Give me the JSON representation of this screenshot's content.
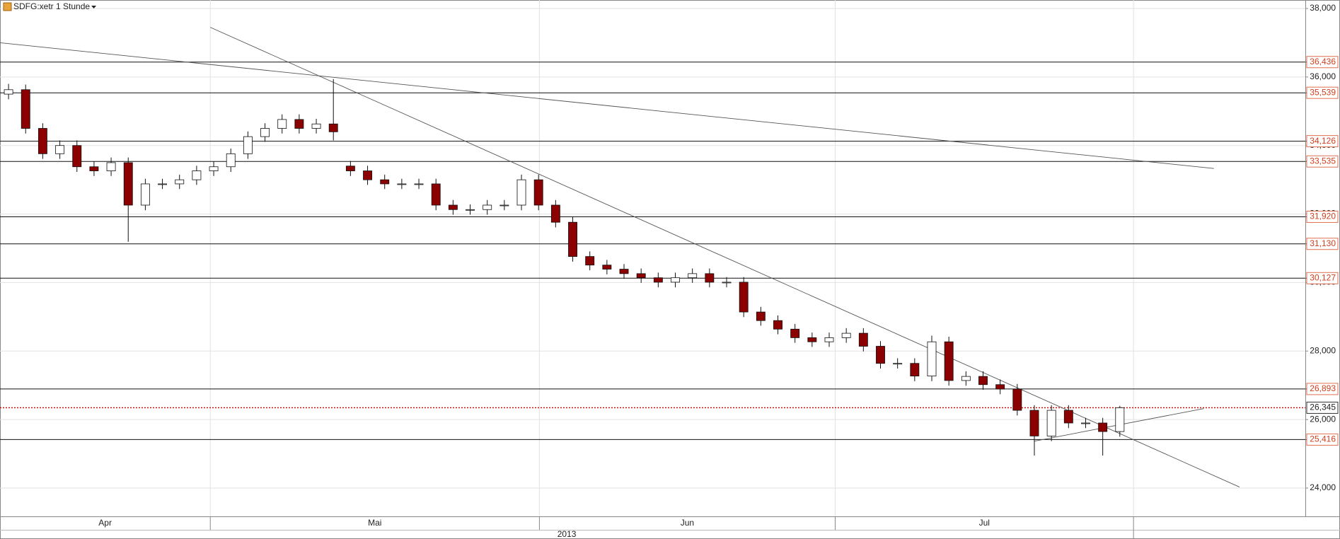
{
  "chart_data": {
    "type": "candlestick",
    "title": "SDFG:xetr 1 Stunde",
    "up_color": "#ffffff",
    "down_color": "#8b0000",
    "open": [
      35500,
      35630,
      34500,
      33760,
      34000,
      33380,
      33260,
      33500,
      32260,
      32880,
      32880,
      33000,
      33260,
      33380,
      33760,
      34260,
      34500,
      34760,
      34500,
      34630,
      33400,
      33260,
      33000,
      32880,
      32880,
      32880,
      32260,
      32130,
      32130,
      32260,
      32260,
      33000,
      32260,
      31760,
      30760,
      30510,
      30390,
      30260,
      30140,
      30010,
      30140,
      30260,
      30010,
      30010,
      29140,
      28890,
      28640,
      28390,
      28270,
      28390,
      28520,
      28140,
      27640,
      27640,
      27270,
      28270,
      27140,
      27260,
      27020,
      26890,
      26270,
      25520,
      26270,
      25900,
      25900,
      25650
    ],
    "high": [
      35800,
      35780,
      34650,
      34150,
      34150,
      33530,
      33650,
      33650,
      33030,
      33030,
      33150,
      33410,
      33530,
      33910,
      34410,
      34650,
      34910,
      34910,
      34780,
      35940,
      33550,
      33410,
      33150,
      33030,
      33030,
      33030,
      32410,
      32280,
      32410,
      32410,
      33150,
      33150,
      32410,
      31910,
      30910,
      30660,
      30540,
      30410,
      30290,
      30290,
      30410,
      30410,
      30160,
      30160,
      29290,
      29040,
      28790,
      28540,
      28540,
      28670,
      28670,
      28290,
      27790,
      27790,
      28450,
      28420,
      27410,
      27410,
      27170,
      27040,
      26420,
      26420,
      26420,
      26050,
      26050,
      26400
    ],
    "low": [
      35350,
      34350,
      33610,
      33610,
      33230,
      33110,
      33110,
      31190,
      32110,
      32730,
      32730,
      32850,
      33110,
      33230,
      33610,
      34110,
      34350,
      34350,
      34350,
      34150,
      33110,
      32850,
      32730,
      32730,
      32730,
      32110,
      31980,
      31980,
      31980,
      32110,
      32110,
      32110,
      31610,
      30610,
      30360,
      30240,
      30110,
      29990,
      29860,
      29860,
      29990,
      29860,
      29860,
      28990,
      28740,
      28490,
      28240,
      28120,
      28120,
      28240,
      27990,
      27490,
      27490,
      27120,
      27120,
      26990,
      26990,
      26870,
      26740,
      26120,
      24950,
      25370,
      25750,
      25750,
      24950,
      25500
    ],
    "close": [
      35630,
      34500,
      33760,
      34000,
      33380,
      33260,
      33500,
      32260,
      32880,
      32880,
      33000,
      33260,
      33380,
      33760,
      34260,
      34500,
      34760,
      34500,
      34630,
      34400,
      33260,
      33000,
      32880,
      32880,
      32880,
      32260,
      32130,
      32130,
      32260,
      32260,
      33000,
      32260,
      31760,
      30760,
      30510,
      30390,
      30260,
      30140,
      30010,
      30140,
      30260,
      30010,
      30010,
      29140,
      28890,
      28640,
      28390,
      28270,
      28390,
      28520,
      28140,
      27640,
      27640,
      27270,
      28270,
      27140,
      27260,
      27020,
      26890,
      26270,
      25520,
      26270,
      25900,
      25900,
      25650,
      26345
    ],
    "xlim": [
      0,
      76.35
    ],
    "xticks": [
      12.3,
      31.55,
      48.85,
      66.3
    ],
    "months": [
      "Apr",
      "Mai",
      "Jun",
      "Jul"
    ],
    "year": "2013",
    "ylim": [
      23174,
      38248
    ],
    "yticks": [
      {
        "value": 38000,
        "label": "38,000"
      },
      {
        "value": 36000,
        "label": "36,000"
      },
      {
        "value": 34000,
        "label": "34,000"
      },
      {
        "value": 32000,
        "label": "32,000"
      },
      {
        "value": 30000,
        "label": "30,000"
      },
      {
        "value": 28000,
        "label": "28,000"
      },
      {
        "value": 26000,
        "label": "26,000"
      },
      {
        "value": 24000,
        "label": "24,000"
      }
    ],
    "grid": true,
    "levels": [
      {
        "value": 36436,
        "label": "36,436"
      },
      {
        "value": 35539,
        "label": "35,539"
      },
      {
        "value": 34126,
        "label": "34,126"
      },
      {
        "value": 33535,
        "label": "33,535"
      },
      {
        "value": 31920,
        "label": "31,920"
      },
      {
        "value": 31130,
        "label": "31,130"
      },
      {
        "value": 30127,
        "label": "30,127"
      },
      {
        "value": 26893,
        "label": "26,893"
      },
      {
        "value": 25416,
        "label": "25,416"
      }
    ],
    "last": {
      "value": 26345,
      "label": "26,345",
      "color": "#cc0000"
    },
    "trendlines": [
      {
        "x": [
          0,
          71
        ],
        "y": [
          37000,
          33330
        ]
      },
      {
        "x": [
          12.3,
          72.5
        ],
        "y": [
          37450,
          24030
        ]
      },
      {
        "x": [
          60.5,
          70.4
        ],
        "y": [
          25370,
          26320
        ]
      }
    ]
  }
}
